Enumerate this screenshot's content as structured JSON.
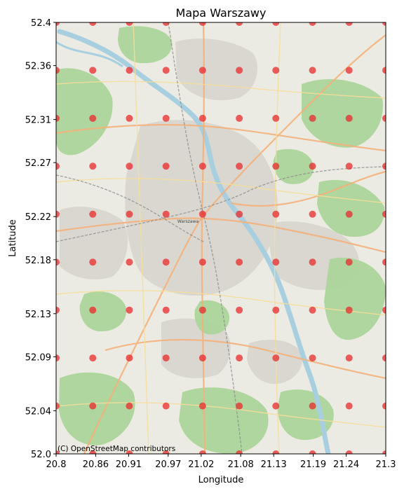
{
  "chart_data": {
    "type": "scatter",
    "title": "Mapa Warszawy",
    "xlabel": "Longitude",
    "ylabel": "Latitude",
    "xlim": [
      20.8,
      21.3
    ],
    "ylim": [
      52.0,
      52.4
    ],
    "xticks": [
      20.8,
      20.86,
      20.91,
      20.97,
      21.02,
      21.08,
      21.13,
      21.19,
      21.24,
      21.3
    ],
    "xtick_labels": [
      "20.8",
      "20.86",
      "20.91",
      "20.97",
      "21.02",
      "21.08",
      "21.13",
      "21.19",
      "21.24",
      "21.3"
    ],
    "yticks": [
      52.0,
      52.04,
      52.09,
      52.13,
      52.18,
      52.22,
      52.27,
      52.31,
      52.36,
      52.4
    ],
    "ytick_labels": [
      "52.0",
      "52.04",
      "52.09",
      "52.13",
      "52.18",
      "52.22",
      "52.27",
      "52.31",
      "52.36",
      "52.4"
    ],
    "grid": false,
    "points": {
      "x": [
        20.8,
        20.8556,
        20.9111,
        20.9667,
        21.0222,
        21.0778,
        21.1333,
        21.1889,
        21.2444,
        21.3
      ],
      "y": [
        52.0,
        52.0444,
        52.0889,
        52.1333,
        52.1778,
        52.2222,
        52.2667,
        52.3111,
        52.3556,
        52.4
      ],
      "layout": "grid",
      "color": "#e8292b",
      "opacity": 0.75
    },
    "basemap": {
      "name": "OpenStreetMap",
      "attribution": "(C) OpenStreetMap contributors",
      "place_label": "Warszawa"
    }
  },
  "colors": {
    "land": "#ecebe3",
    "park": "#acd59b",
    "water": "#a7cfe0",
    "road_major": "#f4b17a",
    "road_minor": "#f6dd9a",
    "urban": "#d6d4cd",
    "rail": "#8c8c8c"
  }
}
